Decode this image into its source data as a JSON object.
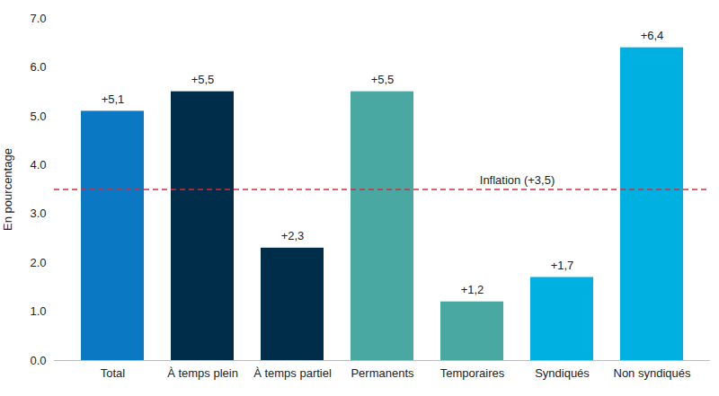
{
  "chart_data": {
    "type": "bar",
    "categories": [
      "Total",
      "À temps plein",
      "À temps partiel",
      "Permanents",
      "Temporaires",
      "Syndiqués",
      "Non syndiqués"
    ],
    "values": [
      5.1,
      5.5,
      2.3,
      5.5,
      1.2,
      1.7,
      6.4
    ],
    "value_labels": [
      "+5,1",
      "+5,5",
      "+2,3",
      "+5,5",
      "+1,2",
      "+1,7",
      "+6,4"
    ],
    "colors": [
      "#0a78c2",
      "#002d4a",
      "#002d4a",
      "#4aa8a2",
      "#4aa8a2",
      "#00b0e0",
      "#00b0e0"
    ],
    "y_label": "En pourcentage",
    "ylim": [
      0,
      7
    ],
    "yticks": [
      0,
      1,
      2,
      3,
      4,
      5,
      6,
      7
    ],
    "grid": false,
    "data_labels": true,
    "annotations": [
      {
        "text": "Inflation (+3,5)",
        "y": 3.5,
        "color": "#d62b3a",
        "line_style": "dashed"
      }
    ]
  }
}
